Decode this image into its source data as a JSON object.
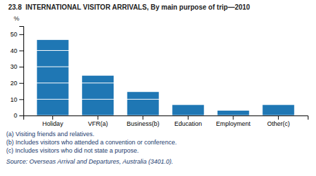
{
  "chart_data": {
    "type": "bar",
    "title": "23.8  INTERNATIONAL VISITOR ARRIVALS, By main purpose of trip—2010",
    "categories": [
      "Holiday",
      "VFR(a)",
      "Business(b)",
      "Education",
      "Employment",
      "Other(c)"
    ],
    "values": [
      46.5,
      24.5,
      14.5,
      6.5,
      3.0,
      6.5
    ],
    "ylabel": "%",
    "ylim": [
      0,
      55
    ],
    "yticks": [
      0,
      10,
      20,
      30,
      40,
      50
    ],
    "grid": true,
    "footnotes": [
      "(a) Visiting friends and relatives.",
      "(b) Includes visitors who attended a convention or conference.",
      "(c) Includes visitors who did not state a purpose."
    ],
    "source": "Source: Overseas Arrival and Departures, Australia (3401.0)."
  }
}
